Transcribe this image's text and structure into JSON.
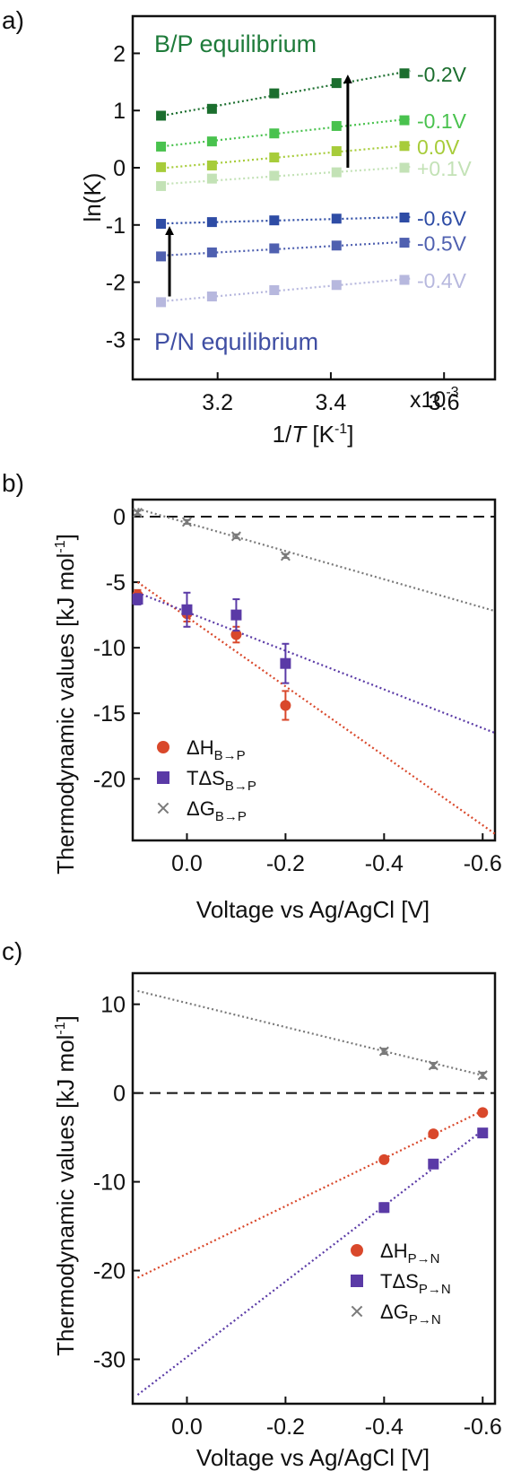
{
  "chart_data": [
    {
      "panel_label": "a)",
      "type": "scatter",
      "xlabel_pre": "1/",
      "xlabel_var": "T",
      "xlabel_unit": " [K",
      "xlabel_exp": "-1",
      "xlabel_post": "]",
      "ylabel": "ln(K)",
      "x_multiplier_label": "x10",
      "x_multiplier_exp": "-3",
      "xlim": [
        3.05,
        3.69
      ],
      "ylim": [
        -3.7,
        2.65
      ],
      "xticks": [
        3.2,
        3.4,
        3.6
      ],
      "xtick_labels": [
        "3.2",
        "3.4",
        "3.6"
      ],
      "yticks": [
        -3,
        -2,
        -1,
        0,
        1,
        2
      ],
      "ytick_labels": [
        "-3",
        "-2",
        "-1",
        "0",
        "1",
        "2"
      ],
      "x": [
        3.1,
        3.19,
        3.3,
        3.41,
        3.53
      ],
      "annotations": [
        {
          "text": "B/P equilibrium",
          "color": "#1e7b3a"
        },
        {
          "text": "P/N equilibrium",
          "color": "#3f4ea3"
        }
      ],
      "arrows": [
        {
          "x": 3.43,
          "y_from": 0.0,
          "y_to": 1.55
        },
        {
          "x": 3.115,
          "y_from": -2.25,
          "y_to": -1.1
        }
      ],
      "series": [
        {
          "name": "-0.2V",
          "color": "#1b6e2e",
          "values": [
            0.91,
            1.03,
            1.3,
            1.48,
            1.65
          ],
          "errors": [
            0.06,
            0.05,
            0.05,
            0.06,
            0.04
          ]
        },
        {
          "name": "-0.1V",
          "color": "#49c24e",
          "values": [
            0.37,
            0.46,
            0.6,
            0.73,
            0.83
          ],
          "errors": [
            0.06,
            0.06,
            0.05,
            0.06,
            0.05
          ]
        },
        {
          "name": "0.0V",
          "color": "#a7cc3a",
          "values": [
            0.01,
            0.04,
            0.18,
            0.29,
            0.38
          ],
          "errors": [
            0.05,
            0.05,
            0.05,
            0.05,
            0.05
          ]
        },
        {
          "name": "+0.1V",
          "color": "#c3e2b6",
          "values": [
            -0.32,
            -0.19,
            -0.14,
            -0.08,
            0.0
          ],
          "errors": [
            0.05,
            0.05,
            0.05,
            0.05,
            0.05
          ]
        },
        {
          "name": "-0.6V",
          "color": "#2e4ca5",
          "values": [
            -0.98,
            -0.95,
            -0.92,
            -0.89,
            -0.87
          ],
          "errors": [
            0.05,
            0.05,
            0.05,
            0.05,
            0.05
          ]
        },
        {
          "name": "-0.5V",
          "color": "#4f60b0",
          "values": [
            -1.55,
            -1.48,
            -1.41,
            -1.36,
            -1.31
          ],
          "errors": [
            0.05,
            0.05,
            0.05,
            0.05,
            0.05
          ]
        },
        {
          "name": "-0.4V",
          "color": "#b7b8de",
          "values": [
            -2.35,
            -2.25,
            -2.14,
            -2.05,
            -1.96
          ],
          "errors": [
            0.05,
            0.05,
            0.05,
            0.05,
            0.05
          ]
        }
      ]
    },
    {
      "panel_label": "b)",
      "type": "scatter",
      "xlabel": "Voltage vs Ag/AgCl [V]",
      "ylabel_main": "Thermodynamic values [kJ mol",
      "ylabel_exp": "-1",
      "ylabel_close": "]",
      "x_reversed": true,
      "xlim": [
        0.11,
        -0.625
      ],
      "ylim": [
        -24.7,
        1.3
      ],
      "xticks": [
        0.0,
        -0.2,
        -0.4,
        -0.6
      ],
      "xtick_labels": [
        "0.0",
        "-0.2",
        "-0.4",
        "-0.6"
      ],
      "yticks": [
        -20,
        -15,
        -10,
        -5,
        0
      ],
      "ytick_labels": [
        "-20",
        "-15",
        "-10",
        "-5",
        "0"
      ],
      "x": [
        0.1,
        0.0,
        -0.1,
        -0.2
      ],
      "series": [
        {
          "name": "ΔH",
          "subscript": "B→P",
          "color": "#d9482b",
          "marker": "circle",
          "values": [
            -6.0,
            -7.4,
            -9.0,
            -14.4
          ],
          "errors": [
            0.4,
            0.6,
            0.6,
            1.1
          ],
          "fit": [
            [
              0.1,
              -5.0
            ],
            [
              -0.625,
              -24.2
            ]
          ]
        },
        {
          "name": "TΔS",
          "subscript": "B→P",
          "color": "#5a3aa6",
          "marker": "square",
          "values": [
            -6.3,
            -7.1,
            -7.5,
            -11.2
          ],
          "errors": [
            0.4,
            1.3,
            1.2,
            1.5
          ],
          "fit": [
            [
              0.1,
              -5.8
            ],
            [
              -0.625,
              -16.5
            ]
          ]
        },
        {
          "name": "ΔG",
          "subscript": "B→P",
          "color": "#7a7a7a",
          "marker": "cross",
          "values": [
            0.3,
            -0.4,
            -1.5,
            -3.0
          ],
          "errors": [
            0.15,
            0.15,
            0.15,
            0.15
          ],
          "fit": [
            [
              0.1,
              0.6
            ],
            [
              -0.625,
              -7.2
            ]
          ]
        }
      ]
    },
    {
      "panel_label": "c)",
      "type": "scatter",
      "xlabel": "Voltage vs Ag/AgCl [V]",
      "ylabel_main": "Thermodynamic values [kJ mol",
      "ylabel_exp": "-1",
      "ylabel_close": "]",
      "x_reversed": true,
      "xlim": [
        0.11,
        -0.625
      ],
      "ylim": [
        -35,
        13.5
      ],
      "xticks": [
        0.0,
        -0.2,
        -0.4,
        -0.6
      ],
      "xtick_labels": [
        "0.0",
        "-0.2",
        "-0.4",
        "-0.6"
      ],
      "yticks": [
        -30,
        -20,
        -10,
        0,
        10
      ],
      "ytick_labels": [
        "-30",
        "-20",
        "-10",
        "0",
        "10"
      ],
      "x": [
        -0.4,
        -0.5,
        -0.6
      ],
      "series": [
        {
          "name": "ΔH",
          "subscript": "P→N",
          "color": "#d9482b",
          "marker": "circle",
          "values": [
            -7.5,
            -4.6,
            -2.2
          ],
          "errors": [
            0.3,
            0.3,
            0.3
          ],
          "fit": [
            [
              0.1,
              -20.8
            ],
            [
              -0.6,
              -2.0
            ]
          ]
        },
        {
          "name": "TΔS",
          "subscript": "P→N",
          "color": "#5a3aa6",
          "marker": "square",
          "values": [
            -12.9,
            -8.0,
            -4.5
          ],
          "errors": [
            0.5,
            0.4,
            0.4
          ],
          "fit": [
            [
              0.1,
              -34.0
            ],
            [
              -0.6,
              -4.2
            ]
          ]
        },
        {
          "name": "ΔG",
          "subscript": "P→N",
          "color": "#7a7a7a",
          "marker": "cross",
          "values": [
            4.7,
            3.1,
            2.0
          ],
          "errors": [
            0.3,
            0.3,
            0.3
          ],
          "fit": [
            [
              0.1,
              11.5
            ],
            [
              -0.6,
              2.0
            ]
          ]
        }
      ]
    }
  ]
}
